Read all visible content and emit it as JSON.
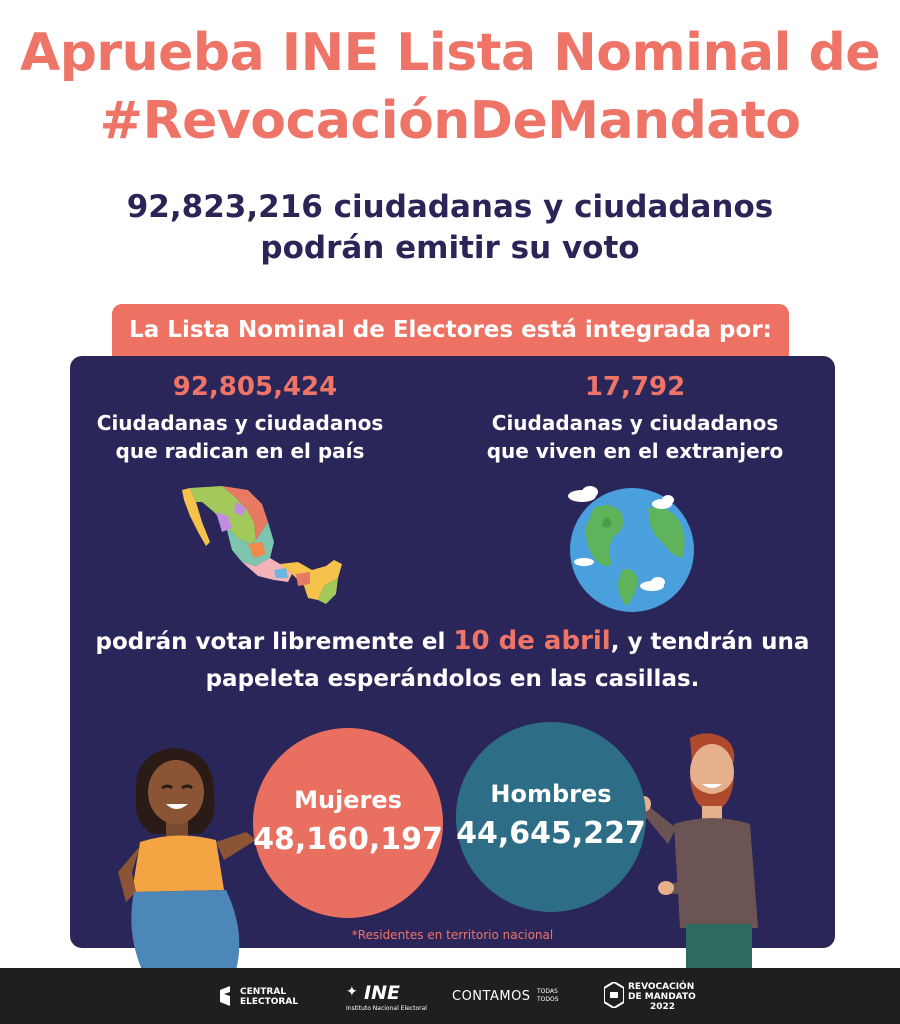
{
  "header": {
    "title_line1": "Aprueba INE Lista Nominal de",
    "title_line2": "#RevocaciónDeMandato",
    "subtitle_line1": "92,823,216 ciudadanas y ciudadanos",
    "subtitle_line2": "podrán emitir su voto"
  },
  "banner": {
    "text": "La Lista Nominal de Electores está integrada por:"
  },
  "stats": {
    "domestic": {
      "number": "92,805,424",
      "line1": "Ciudadanas y ciudadanos",
      "line2": "que radican en el país",
      "icon": "mexico-map-icon"
    },
    "abroad": {
      "number": "17,792",
      "line1": "Ciudadanas y ciudadanos",
      "line2": "que viven en el extranjero",
      "icon": "globe-icon"
    }
  },
  "paragraph": {
    "line1_pre": "podrán votar libremente el ",
    "date": "10 de abril",
    "line1_post": ", y tendrán una",
    "line2": "papeleta esperándolos en las casillas."
  },
  "gender": {
    "women": {
      "label": "Mujeres",
      "value": "48,160,197",
      "color": "#e97061"
    },
    "men": {
      "label": "Hombres",
      "value": "44,645,227",
      "color": "#2d6e86"
    }
  },
  "footnote": "*Residentes en territorio nacional",
  "footer": {
    "logo1_line1": "CENTRAL",
    "logo1_line2": "ELECTORAL",
    "logo2_text": "INE",
    "logo2_sub": "Instituto Nacional Electoral",
    "logo3_text": "CONTAMOS",
    "logo3_small1": "TODAS",
    "logo3_small2": "TODOS",
    "logo4_line1": "REVOCACIÓN",
    "logo4_line2": "DE MANDATO",
    "logo4_line3": "2022"
  },
  "colors": {
    "accent": "#ef7468",
    "navy": "#2b2659",
    "teal": "#2d6e86",
    "footer": "#1f1f1f"
  }
}
